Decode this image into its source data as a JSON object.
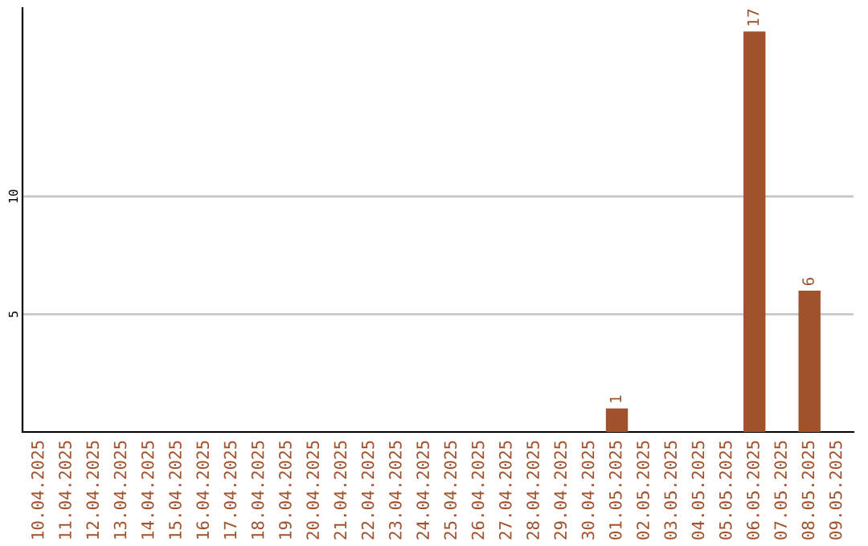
{
  "chart_data": {
    "type": "bar",
    "categories": [
      "10.04.2025",
      "11.04.2025",
      "12.04.2025",
      "13.04.2025",
      "14.04.2025",
      "15.04.2025",
      "16.04.2025",
      "17.04.2025",
      "18.04.2025",
      "19.04.2025",
      "20.04.2025",
      "21.04.2025",
      "22.04.2025",
      "23.04.2025",
      "24.04.2025",
      "25.04.2025",
      "26.04.2025",
      "27.04.2025",
      "28.04.2025",
      "29.04.2025",
      "30.04.2025",
      "01.05.2025",
      "02.05.2025",
      "03.05.2025",
      "04.05.2025",
      "05.05.2025",
      "06.05.2025",
      "07.05.2025",
      "08.05.2025",
      "09.05.2025"
    ],
    "values": [
      0,
      0,
      0,
      0,
      0,
      0,
      0,
      0,
      0,
      0,
      0,
      0,
      0,
      0,
      0,
      0,
      0,
      0,
      0,
      0,
      0,
      1,
      0,
      0,
      0,
      0,
      17,
      0,
      6,
      0
    ],
    "value_labels": [
      null,
      null,
      null,
      null,
      null,
      null,
      null,
      null,
      null,
      null,
      null,
      null,
      null,
      null,
      null,
      null,
      null,
      null,
      null,
      null,
      null,
      "1",
      null,
      null,
      null,
      null,
      "17",
      null,
      "6",
      null
    ],
    "color": "#a0522d",
    "ylim": [
      0,
      18
    ],
    "yticks": [
      5,
      10
    ],
    "grid": "y",
    "legend": false
  }
}
